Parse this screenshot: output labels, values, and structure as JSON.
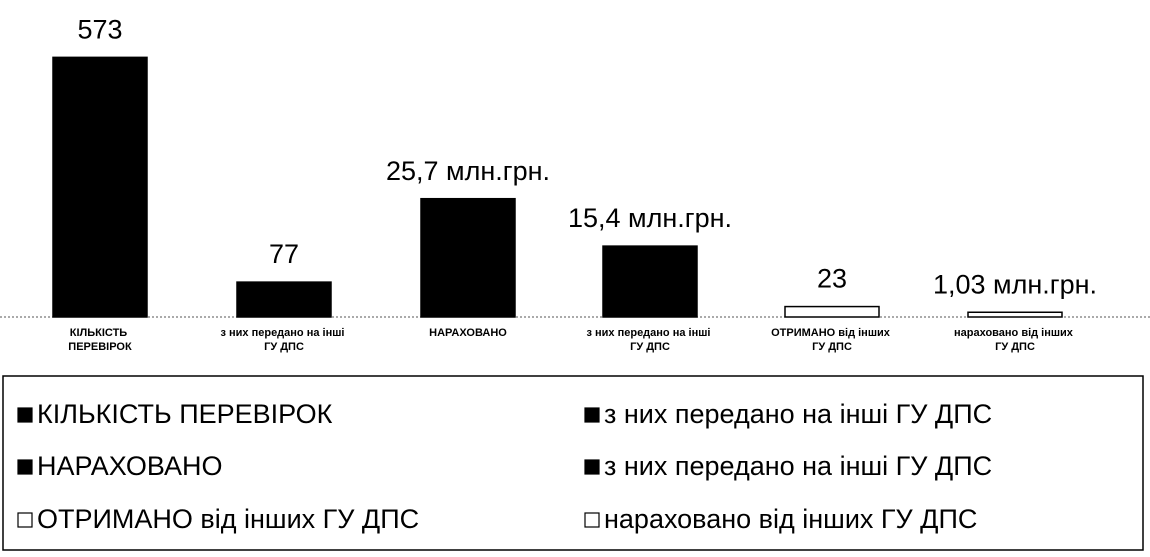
{
  "chart_data": {
    "type": "bar",
    "categories": [
      "КІЛЬКІСТЬ ПЕРЕВІРОК",
      "з них передано на інші ГУ ДПС",
      "НАРАХОВАНО",
      "з них передано на інші ГУ ДПС",
      "ОТРИМАНО від інших ГУ ДПС",
      "нараховано від інших ГУ ДПС"
    ],
    "values": [
      573,
      77,
      25.7,
      15.4,
      23,
      1.03
    ],
    "value_labels": [
      "573",
      "77",
      "25,7 млн.грн.",
      "15,4 млн.грн.",
      "23",
      "1,03 млн.грн."
    ],
    "axes": [
      "y",
      "y",
      "y2",
      "y2",
      "y",
      "y2"
    ],
    "colors": [
      "#000000",
      "#000000",
      "#000000",
      "#000000",
      "#ffffff",
      "#ffffff"
    ],
    "ylim": [
      0,
      640
    ],
    "y2lim": [
      0,
      63
    ],
    "legend": "bottom"
  }
}
